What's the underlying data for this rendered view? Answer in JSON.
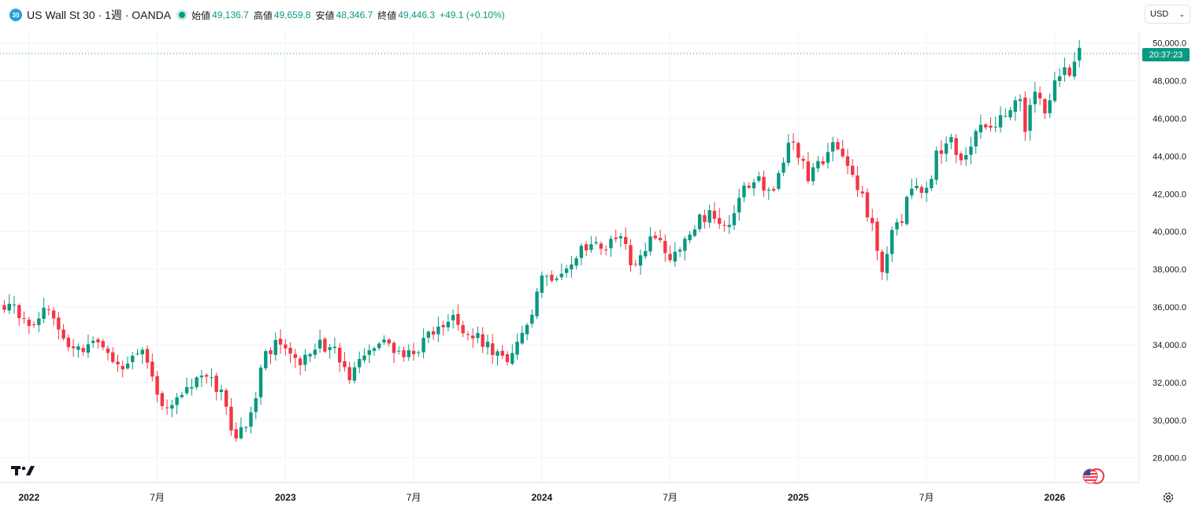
{
  "header": {
    "symbol_badge": "30",
    "title": "US Wall St 30 · 1週 · OANDA",
    "open_label": "始値",
    "open": "49,136.7",
    "high_label": "高値",
    "high": "49,659.8",
    "low_label": "安値",
    "low": "48,346.7",
    "close_label": "終値",
    "close": "49,446.3",
    "change": "+49.1 (+0.10%)"
  },
  "currency": {
    "label": "USD"
  },
  "price_tag": {
    "time": "20:37:23",
    "price": 49446.3
  },
  "colors": {
    "up": "#089981",
    "down": "#f23645",
    "grid": "#f0f3fa",
    "text": "#131722",
    "tag": "#089981"
  },
  "icons": {
    "logo": "tradingview-logo-icon",
    "flag": "us-flag-icon",
    "settings": "gear-icon"
  },
  "chart_data": {
    "type": "candlestick",
    "title": "US Wall St 30 · 1週 · OANDA",
    "interval": "1週",
    "ylim": [
      27000,
      51000
    ],
    "y_ticks": [
      "28,000.0",
      "30,000.0",
      "32,000.0",
      "34,000.0",
      "36,000.0",
      "38,000.0",
      "40,000.0",
      "42,000.0",
      "44,000.0",
      "46,000.0",
      "48,000.0",
      "50,000.0"
    ],
    "x_ticks": [
      "2022",
      "7月",
      "2023",
      "7月",
      "2024",
      "7月",
      "2025",
      "7月",
      "2026"
    ],
    "x_tick_weeks": [
      5,
      31,
      57,
      83,
      109,
      135,
      161,
      187,
      213
    ],
    "grid": true,
    "close_path": [
      [
        0,
        36200
      ],
      [
        6,
        35000
      ],
      [
        8,
        36300
      ],
      [
        12,
        34200
      ],
      [
        16,
        33700
      ],
      [
        20,
        34200
      ],
      [
        24,
        32600
      ],
      [
        28,
        33900
      ],
      [
        32,
        30800
      ],
      [
        36,
        31200
      ],
      [
        40,
        32400
      ],
      [
        44,
        31500
      ],
      [
        47,
        28700
      ],
      [
        50,
        30500
      ],
      [
        53,
        33500
      ],
      [
        56,
        34200
      ],
      [
        60,
        33100
      ],
      [
        63,
        33900
      ],
      [
        66,
        34000
      ],
      [
        70,
        32200
      ],
      [
        74,
        33600
      ],
      [
        77,
        34000
      ],
      [
        82,
        33500
      ],
      [
        87,
        34600
      ],
      [
        91,
        35400
      ],
      [
        95,
        34500
      ],
      [
        98,
        34000
      ],
      [
        102,
        32900
      ],
      [
        106,
        34800
      ],
      [
        109,
        37400
      ],
      [
        113,
        38000
      ],
      [
        117,
        38900
      ],
      [
        121,
        39200
      ],
      [
        125,
        39600
      ],
      [
        128,
        38000
      ],
      [
        132,
        39900
      ],
      [
        135,
        38600
      ],
      [
        138,
        39400
      ],
      [
        141,
        40600
      ],
      [
        144,
        41000
      ],
      [
        147,
        40200
      ],
      [
        150,
        42200
      ],
      [
        153,
        42700
      ],
      [
        156,
        41900
      ],
      [
        159,
        44700
      ],
      [
        161,
        44200
      ],
      [
        163,
        42700
      ],
      [
        166,
        43900
      ],
      [
        168,
        44400
      ],
      [
        171,
        43600
      ],
      [
        174,
        41900
      ],
      [
        176,
        40200
      ],
      [
        178,
        37600
      ],
      [
        180,
        40400
      ],
      [
        182,
        40800
      ],
      [
        184,
        42300
      ],
      [
        187,
        42000
      ],
      [
        189,
        44100
      ],
      [
        192,
        44800
      ],
      [
        194,
        43800
      ],
      [
        197,
        45200
      ],
      [
        200,
        45600
      ],
      [
        203,
        46400
      ],
      [
        206,
        47000
      ],
      [
        207,
        45600
      ],
      [
        209,
        47400
      ],
      [
        211,
        46300
      ],
      [
        213,
        48100
      ],
      [
        216,
        48500
      ],
      [
        218,
        49400
      ]
    ]
  }
}
